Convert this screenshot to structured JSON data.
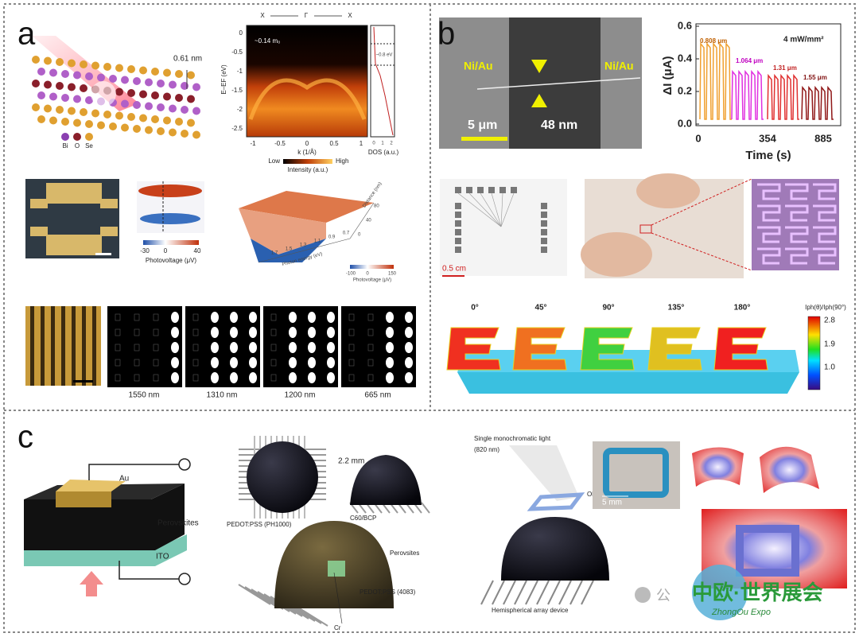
{
  "panel_a": {
    "label": "a",
    "crystal": {
      "spacing": "0.61 nm",
      "elements": [
        "Bi",
        "O",
        "Se"
      ]
    },
    "arpes": {
      "top_labels": [
        "X",
        "Γ",
        "X"
      ],
      "mass": "~0.14 m₀",
      "y_label": "E–EF (eV)",
      "y_ticks": [
        "0",
        "-0.5",
        "-1",
        "-1.5",
        "-2",
        "-2.5"
      ],
      "x_label": "k (1/Å)",
      "x_ticks": [
        "-1",
        "-0.5",
        "0",
        "0.5",
        "1"
      ],
      "colorbar": [
        "Low",
        "High"
      ],
      "colorbar_label": "Intensity (a.u.)",
      "dos_gap": "~0.8 eV",
      "dos_ticks": [
        "0",
        "1",
        "2"
      ],
      "dos_label": "DOS (a.u.)"
    },
    "photovoltage_map": {
      "ticks": [
        "-30",
        "0",
        "40"
      ],
      "label": "Photovoltage (μV)"
    },
    "surface": {
      "x_label": "Photon energy (eV)",
      "x_ticks": [
        "1.7",
        "1.5",
        "1.3",
        "1.1",
        "0.9",
        "0.7"
      ],
      "y_label": "Distance (nm)",
      "y_ticks": [
        "0",
        "40",
        "80"
      ],
      "colorbar_ticks": [
        "-100",
        "0",
        "150"
      ],
      "colorbar_label": "Photovoltage (μV)"
    },
    "wavelengths": [
      "1550 nm",
      "1310 nm",
      "1200 nm",
      "665 nm"
    ]
  },
  "panel_b": {
    "label": "b",
    "sem": {
      "electrodes": [
        "Ni/Au",
        "Ni/Au"
      ],
      "scale": "5 μm",
      "width": "48 nm"
    },
    "plot": {
      "y_label": "ΔI (μA)",
      "y_ticks": [
        "0.0",
        "0.2",
        "0.4",
        "0.6"
      ],
      "x_label": "Time (s)",
      "x_ticks": [
        "0",
        "354",
        "885"
      ],
      "power": "4 mW/mm²",
      "wavelengths": [
        "0.808 μm",
        "1.064 μm",
        "1.31 μm",
        "1.55 μm"
      ]
    },
    "scale": "0.5 cm",
    "angles": [
      "0°",
      "45°",
      "90°",
      "135°",
      "180°"
    ],
    "colorbar_label": "Iph(θ)/Iph(90°)",
    "colorbar_ticks": [
      "2.8",
      "1.9",
      "1.0"
    ]
  },
  "panel_c": {
    "label": "c",
    "stack": [
      "Au",
      "Perovskites",
      "ITO"
    ],
    "dimension": "2.2 mm",
    "materials": [
      "PEDOT:PSS (PH1000)",
      "C60/BCP",
      "Perovsites",
      "PEDOT:PSS (4083)",
      "Cr"
    ],
    "light": [
      "Single monochromatic light",
      "(820 nm)"
    ],
    "object": "Object",
    "scale": "5 mm",
    "device": "Hemispherical array device"
  },
  "watermark": {
    "account": "公",
    "title": "中欧·世界展会",
    "subtitle": "ZhongOu Expo"
  }
}
